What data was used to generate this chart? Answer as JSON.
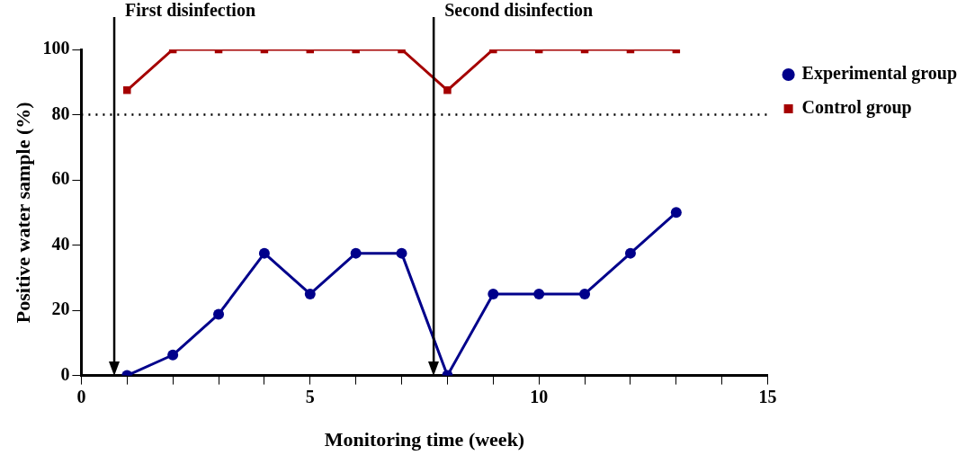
{
  "chart_data": {
    "type": "line",
    "xlabel": "Monitoring time (week)",
    "ylabel": "Positive water sample (%)",
    "x": [
      1,
      2,
      3,
      4,
      5,
      6,
      7,
      8,
      9,
      10,
      11,
      12,
      13
    ],
    "series": [
      {
        "name": "Experimental group",
        "color": "#00008b",
        "marker": "circle",
        "values": [
          0,
          6.3,
          18.8,
          37.5,
          25,
          37.5,
          37.5,
          0,
          25,
          25,
          25,
          37.5,
          50
        ]
      },
      {
        "name": "Control group",
        "color": "#a50000",
        "marker": "square",
        "values": [
          87.5,
          100,
          100,
          100,
          100,
          100,
          100,
          87.5,
          100,
          100,
          100,
          100,
          100
        ]
      }
    ],
    "xlim": [
      0,
      15
    ],
    "xticks": [
      0,
      {
        "value": 1,
        "label": null
      },
      {
        "value": 2,
        "label": null
      },
      {
        "value": 3,
        "label": null
      },
      {
        "value": 4,
        "label": null
      },
      5,
      {
        "value": 6,
        "label": null
      },
      {
        "value": 7,
        "label": null
      },
      {
        "value": 8,
        "label": null
      },
      {
        "value": 9,
        "label": null
      },
      10,
      {
        "value": 11,
        "label": null
      },
      {
        "value": 12,
        "label": null
      },
      {
        "value": 13,
        "label": null
      },
      {
        "value": 14,
        "label": null
      },
      15
    ],
    "ylim": [
      0,
      100
    ],
    "yticks": [
      0,
      20,
      40,
      60,
      80,
      100
    ],
    "ref_lines": [
      {
        "axis": "x",
        "value": 0.72,
        "label": "First disinfection",
        "color": "#000000",
        "line_style": "solid"
      },
      {
        "axis": "x",
        "value": 7.7,
        "label": "Second disinfection",
        "color": "#000000",
        "line_style": "solid"
      },
      {
        "axis": "y",
        "value": 80,
        "color": "#000000",
        "line_style": "dotted"
      }
    ],
    "grid": false,
    "legend": "top right",
    "line_style": "solid"
  }
}
